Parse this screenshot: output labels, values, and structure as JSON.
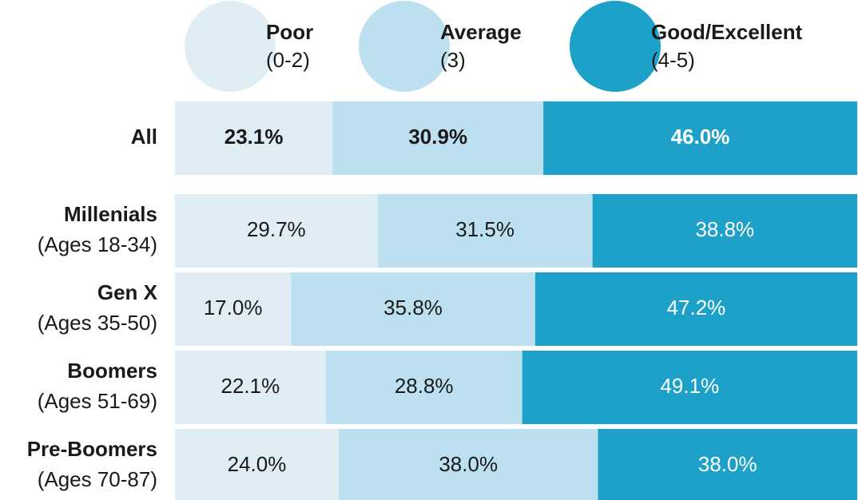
{
  "chart_data": {
    "type": "stacked_bar_100",
    "categories": [
      "All",
      "Millenials",
      "Gen X",
      "Boomers",
      "Pre-Boomers"
    ],
    "category_notes": [
      null,
      "(Ages 18-34)",
      "(Ages 35-50)",
      "(Ages 51-69)",
      "(Ages 70-87)"
    ],
    "xlim": [
      0,
      100
    ],
    "series": [
      {
        "name": "Poor",
        "note": "(0-2)",
        "color": "#e1edf4",
        "text_color": "#1a1a1a",
        "values": [
          23.1,
          29.7,
          17.0,
          22.1,
          24.0
        ],
        "value_labels": [
          "23.1%",
          "29.7%",
          "17.0%",
          "22.1%",
          "24.0%"
        ]
      },
      {
        "name": "Average",
        "note": "(3)",
        "color": "#bde0f0",
        "text_color": "#1a1a1a",
        "values": [
          30.9,
          31.5,
          35.8,
          28.8,
          38.0
        ],
        "value_labels": [
          "30.9%",
          "31.5%",
          "35.8%",
          "28.8%",
          "38.0%"
        ]
      },
      {
        "name": "Good/Excellent",
        "note": "(4-5)",
        "color": "#1da1c8",
        "text_color": "#ffffff",
        "values": [
          46.0,
          38.8,
          47.2,
          49.1,
          38.0
        ],
        "value_labels": [
          "46.0%",
          "38.8%",
          "47.2%",
          "49.1%",
          "38.0%"
        ]
      }
    ]
  }
}
